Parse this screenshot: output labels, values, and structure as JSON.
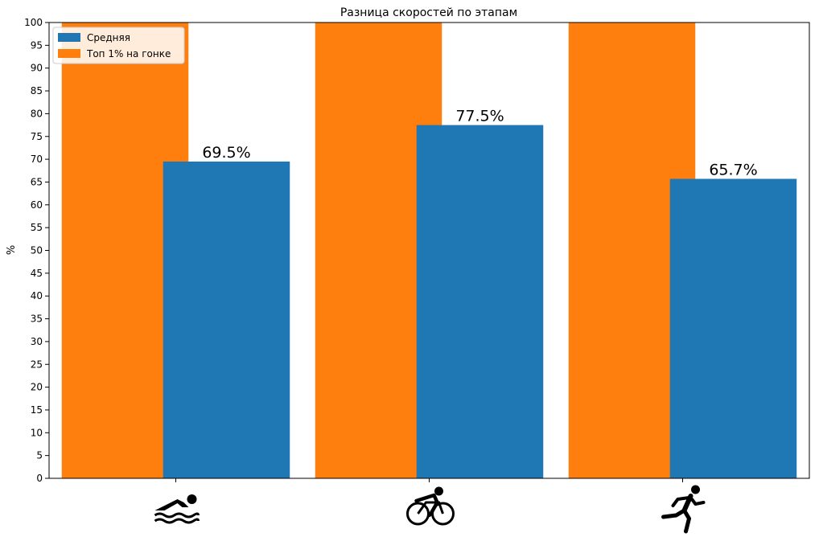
{
  "chart_data": {
    "type": "bar",
    "title": "Разница скоростей по этапам",
    "xlabel": "",
    "ylabel": "%",
    "ylim": [
      0,
      100
    ],
    "yticks": [
      0,
      5,
      10,
      15,
      20,
      25,
      30,
      35,
      40,
      45,
      50,
      55,
      60,
      65,
      70,
      75,
      80,
      85,
      90,
      95,
      100
    ],
    "categories": [
      "swimming-icon",
      "cycling-icon",
      "running-icon"
    ],
    "series": [
      {
        "name": "Средняя",
        "color": "#1f77b4",
        "values": [
          69.5,
          77.5,
          65.7
        ],
        "labels": [
          "69.5%",
          "77.5%",
          "65.7%"
        ]
      },
      {
        "name": "Топ 1% на гонке",
        "color": "#ff7f0e",
        "values": [
          100,
          100,
          100
        ]
      }
    ],
    "legend_position": "top-left",
    "grid": false
  }
}
